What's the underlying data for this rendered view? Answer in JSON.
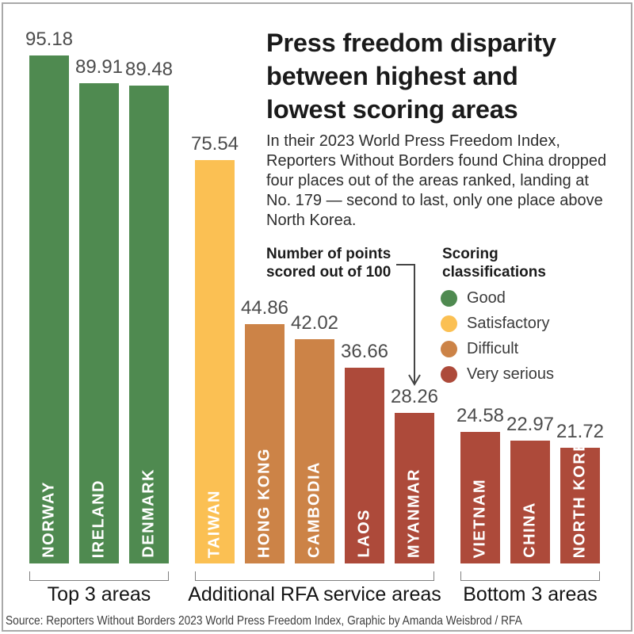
{
  "header": {
    "title_lines": [
      "Press freedom disparity",
      "between highest and",
      "lowest scoring areas"
    ],
    "subtitle": "In their 2023 World Press Freedom Index, Reporters Without Borders found China dropped four places out of the areas ranked, landing at No. 179 — second to last, only one place above North Korea."
  },
  "annotation": {
    "lines": [
      "Number of points",
      "scored out of 100"
    ]
  },
  "legend": {
    "title_lines": [
      "Scoring",
      "classifications"
    ],
    "items": [
      {
        "label": "Good",
        "color": "#4f8a50"
      },
      {
        "label": "Satisfactory",
        "color": "#fbc053"
      },
      {
        "label": "Difficult",
        "color": "#cc8347"
      },
      {
        "label": "Very serious",
        "color": "#ad4a3a"
      }
    ]
  },
  "chart_data": {
    "type": "bar",
    "title": "Press freedom disparity between highest and lowest scoring areas",
    "ylabel": "Number of points scored out of 100",
    "ylim": [
      0,
      100
    ],
    "grid": false,
    "legend_position": "right",
    "groups": [
      {
        "label": "Top 3 areas",
        "bars": [
          {
            "name": "NORWAY",
            "value": 95.18,
            "classification": "Good",
            "color": "#4f8a50"
          },
          {
            "name": "IRELAND",
            "value": 89.91,
            "classification": "Good",
            "color": "#4f8a50"
          },
          {
            "name": "DENMARK",
            "value": 89.48,
            "classification": "Good",
            "color": "#4f8a50"
          }
        ]
      },
      {
        "label": "Additional RFA service areas",
        "bars": [
          {
            "name": "TAIWAN",
            "value": 75.54,
            "classification": "Satisfactory",
            "color": "#fbc053"
          },
          {
            "name": "HONG KONG",
            "value": 44.86,
            "classification": "Difficult",
            "color": "#cc8347"
          },
          {
            "name": "CAMBODIA",
            "value": 42.02,
            "classification": "Difficult",
            "color": "#cc8347"
          },
          {
            "name": "LAOS",
            "value": 36.66,
            "classification": "Very serious",
            "color": "#ad4a3a"
          },
          {
            "name": "MYANMAR",
            "value": 28.26,
            "classification": "Very serious",
            "color": "#ad4a3a"
          }
        ]
      },
      {
        "label": "Bottom 3 areas",
        "bars": [
          {
            "name": "VIETNAM",
            "value": 24.58,
            "classification": "Very serious",
            "color": "#ad4a3a"
          },
          {
            "name": "CHINA",
            "value": 22.97,
            "classification": "Very serious",
            "color": "#ad4a3a"
          },
          {
            "name": "NORTH KOREA",
            "value": 21.72,
            "classification": "Very serious",
            "color": "#ad4a3a"
          }
        ]
      }
    ]
  },
  "footer": {
    "source": "Source: Reporters Without Borders 2023 World Press Freedom Index, Graphic by Amanda Weisbrod / RFA"
  }
}
